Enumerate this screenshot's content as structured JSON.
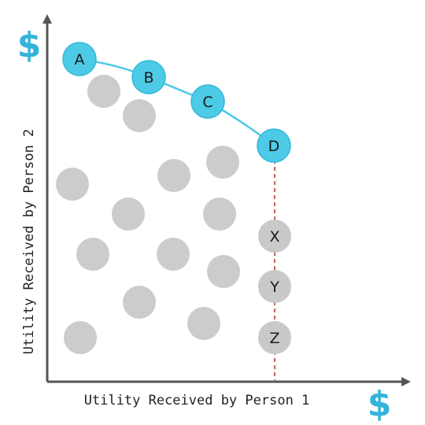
{
  "axes": {
    "x_label": "Utility Received by Person 1",
    "y_label": "Utility Received by Person 2",
    "x_currency_symbol": "$",
    "y_currency_symbol": "$"
  },
  "colors": {
    "frontier": "#4dcbe6",
    "frontier_stroke": "#2fb8d8",
    "gray_point": "#cccccc",
    "labeled_gray_point": "#c9c9c9",
    "dashed_line": "#b5302b",
    "axis": "#555555",
    "dollar": "#34b3db"
  },
  "frontier_points": [
    {
      "label": "A"
    },
    {
      "label": "B"
    },
    {
      "label": "C"
    },
    {
      "label": "D"
    }
  ],
  "vertical_points": [
    {
      "label": "X"
    },
    {
      "label": "Y"
    },
    {
      "label": "Z"
    }
  ],
  "gray_point_count": 14
}
